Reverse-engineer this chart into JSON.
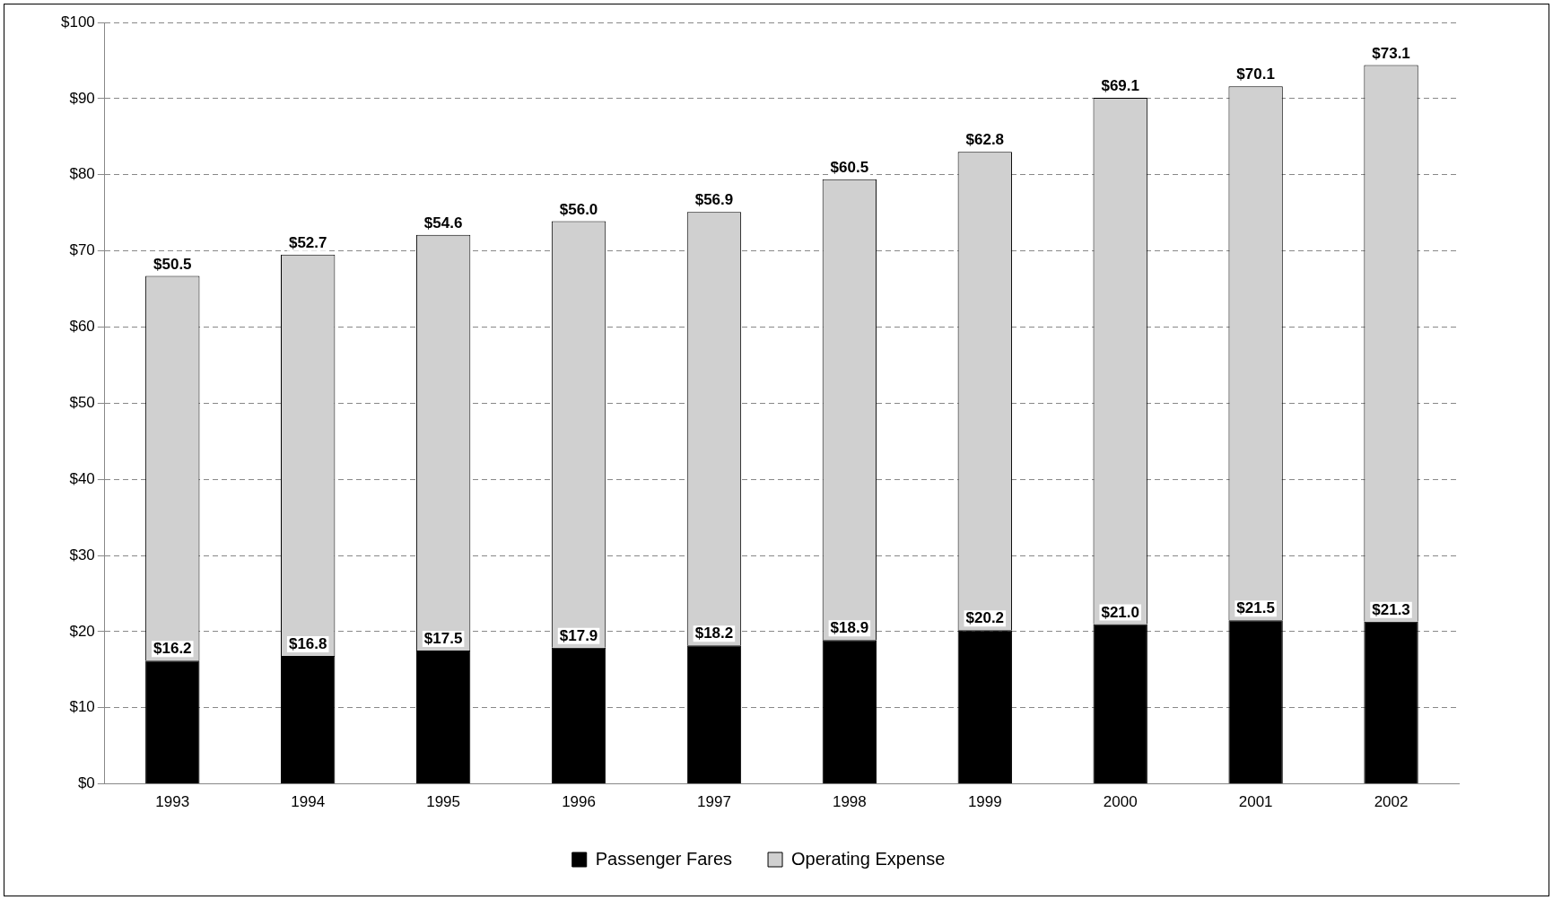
{
  "chart_data": {
    "type": "bar",
    "stacked": true,
    "categories": [
      "1993",
      "1994",
      "1995",
      "1996",
      "1997",
      "1998",
      "1999",
      "2000",
      "2001",
      "2002"
    ],
    "series": [
      {
        "name": "Passenger Fares",
        "color": "#000000",
        "values": [
          16.2,
          16.8,
          17.5,
          17.9,
          18.2,
          18.9,
          20.2,
          21.0,
          21.5,
          21.3
        ],
        "value_labels": [
          "$16.2",
          "$16.8",
          "$17.5",
          "$17.9",
          "$18.2",
          "$18.9",
          "$20.2",
          "$21.0",
          "$21.5",
          "$21.3"
        ]
      },
      {
        "name": "Operating Expense",
        "color": "#d0d0d0",
        "values": [
          50.5,
          52.7,
          54.6,
          56.0,
          56.9,
          60.5,
          62.8,
          69.1,
          70.1,
          73.1
        ],
        "value_labels": [
          "$50.5",
          "$52.7",
          "$54.6",
          "$56.0",
          "$56.9",
          "$60.5",
          "$62.8",
          "$69.1",
          "$70.1",
          "$73.1"
        ]
      }
    ],
    "ylim": [
      0,
      100
    ],
    "yticks": [
      {
        "value": 0,
        "label": "$0"
      },
      {
        "value": 10,
        "label": "$10"
      },
      {
        "value": 20,
        "label": "$20"
      },
      {
        "value": 30,
        "label": "$30"
      },
      {
        "value": 40,
        "label": "$40"
      },
      {
        "value": 50,
        "label": "$50"
      },
      {
        "value": 60,
        "label": "$60"
      },
      {
        "value": 70,
        "label": "$70"
      },
      {
        "value": 80,
        "label": "$80"
      },
      {
        "value": 90,
        "label": "$90"
      },
      {
        "value": 100,
        "label": "$100"
      }
    ],
    "grid": "y",
    "legend": "bottom"
  }
}
